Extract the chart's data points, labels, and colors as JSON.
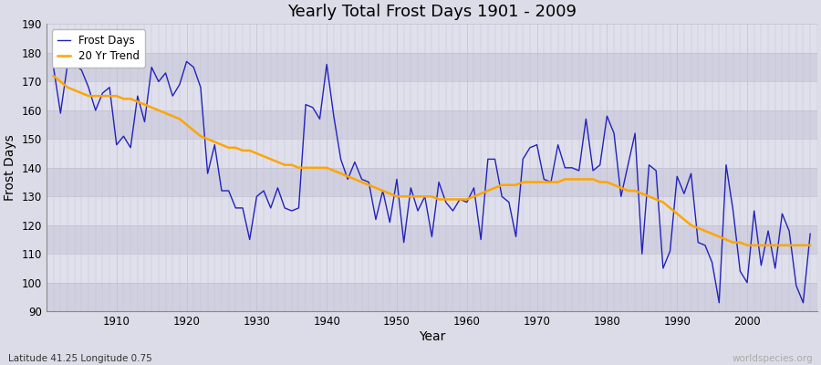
{
  "title": "Yearly Total Frost Days 1901 - 2009",
  "xlabel": "Year",
  "ylabel": "Frost Days",
  "subtitle_left": "Latitude 41.25 Longitude 0.75",
  "subtitle_right": "worldspecies.org",
  "ylim": [
    90,
    190
  ],
  "xlim": [
    1901,
    2009
  ],
  "yticks": [
    90,
    100,
    110,
    120,
    130,
    140,
    150,
    160,
    170,
    180,
    190
  ],
  "xticks": [
    1910,
    1920,
    1930,
    1940,
    1950,
    1960,
    1970,
    1980,
    1990,
    2000
  ],
  "line_color": "#2222bb",
  "trend_color": "#FFA500",
  "bg_color": "#dcdce8",
  "plot_bg_color": "#dcdce8",
  "band_color1": "#d0d0e0",
  "band_color2": "#e0e0ec",
  "grid_color": "#c0c0d0",
  "legend_frost": "Frost Days",
  "legend_trend": "20 Yr Trend",
  "years": [
    1901,
    1902,
    1903,
    1904,
    1905,
    1906,
    1907,
    1908,
    1909,
    1910,
    1911,
    1912,
    1913,
    1914,
    1915,
    1916,
    1917,
    1918,
    1919,
    1920,
    1921,
    1922,
    1923,
    1924,
    1925,
    1926,
    1927,
    1928,
    1929,
    1930,
    1931,
    1932,
    1933,
    1934,
    1935,
    1936,
    1937,
    1938,
    1939,
    1940,
    1941,
    1942,
    1943,
    1944,
    1945,
    1946,
    1947,
    1948,
    1949,
    1950,
    1951,
    1952,
    1953,
    1954,
    1955,
    1956,
    1957,
    1958,
    1959,
    1960,
    1961,
    1962,
    1963,
    1964,
    1965,
    1966,
    1967,
    1968,
    1969,
    1970,
    1971,
    1972,
    1973,
    1974,
    1975,
    1976,
    1977,
    1978,
    1979,
    1980,
    1981,
    1982,
    1983,
    1984,
    1985,
    1986,
    1987,
    1988,
    1989,
    1990,
    1991,
    1992,
    1993,
    1994,
    1995,
    1996,
    1997,
    1998,
    1999,
    2000,
    2001,
    2002,
    2003,
    2004,
    2005,
    2006,
    2007,
    2008,
    2009
  ],
  "frost_days": [
    175,
    159,
    176,
    176,
    174,
    168,
    160,
    166,
    168,
    148,
    151,
    147,
    165,
    156,
    175,
    170,
    173,
    165,
    169,
    177,
    175,
    168,
    138,
    148,
    132,
    132,
    126,
    126,
    115,
    130,
    132,
    126,
    133,
    126,
    125,
    126,
    162,
    161,
    157,
    176,
    158,
    143,
    136,
    142,
    136,
    135,
    122,
    132,
    121,
    136,
    114,
    133,
    125,
    130,
    116,
    135,
    128,
    125,
    129,
    128,
    133,
    115,
    143,
    143,
    130,
    128,
    116,
    143,
    147,
    148,
    136,
    135,
    148,
    140,
    140,
    139,
    157,
    139,
    141,
    158,
    152,
    130,
    141,
    152,
    110,
    141,
    139,
    105,
    111,
    137,
    131,
    138,
    114,
    113,
    107,
    93,
    141,
    125,
    104,
    100,
    125,
    106,
    118,
    105,
    124,
    118,
    99,
    93,
    117
  ],
  "trend_years": [
    1901,
    1902,
    1903,
    1904,
    1905,
    1906,
    1907,
    1908,
    1909,
    1910,
    1911,
    1912,
    1913,
    1914,
    1915,
    1916,
    1917,
    1918,
    1919,
    1920,
    1921,
    1922,
    1923,
    1924,
    1925,
    1926,
    1927,
    1928,
    1929,
    1930,
    1931,
    1932,
    1933,
    1934,
    1935,
    1936,
    1937,
    1938,
    1939,
    1940,
    1941,
    1942,
    1943,
    1944,
    1945,
    1946,
    1947,
    1948,
    1949,
    1950,
    1951,
    1952,
    1953,
    1954,
    1955,
    1956,
    1957,
    1958,
    1959,
    1960,
    1961,
    1962,
    1963,
    1964,
    1965,
    1966,
    1967,
    1968,
    1969,
    1970,
    1971,
    1972,
    1973,
    1974,
    1975,
    1976,
    1977,
    1978,
    1979,
    1980,
    1981,
    1982,
    1983,
    1984,
    1985,
    1986,
    1987,
    1988,
    1989,
    1990,
    1991,
    1992,
    1993,
    1994,
    1995,
    1996,
    1997,
    1998,
    1999,
    2000,
    2001,
    2002,
    2003,
    2004,
    2005,
    2006,
    2007,
    2008,
    2009
  ],
  "trend_values": [
    172,
    170,
    168,
    167,
    166,
    165,
    165,
    165,
    165,
    165,
    164,
    164,
    163,
    162,
    161,
    160,
    159,
    158,
    157,
    155,
    153,
    151,
    150,
    149,
    148,
    147,
    147,
    146,
    146,
    145,
    144,
    143,
    142,
    141,
    141,
    140,
    140,
    140,
    140,
    140,
    139,
    138,
    137,
    136,
    135,
    134,
    133,
    132,
    131,
    130,
    130,
    130,
    130,
    130,
    130,
    129,
    129,
    129,
    129,
    129,
    130,
    131,
    132,
    133,
    134,
    134,
    134,
    135,
    135,
    135,
    135,
    135,
    135,
    136,
    136,
    136,
    136,
    136,
    135,
    135,
    134,
    133,
    132,
    132,
    131,
    130,
    129,
    128,
    126,
    124,
    122,
    120,
    119,
    118,
    117,
    116,
    115,
    114,
    114,
    113,
    113,
    113,
    113,
    113,
    113,
    113,
    113,
    113,
    113
  ]
}
